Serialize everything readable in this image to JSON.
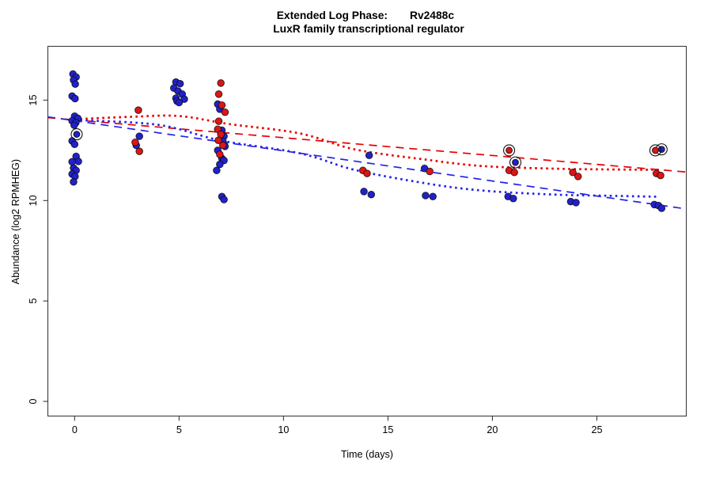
{
  "figure": {
    "title_line1_left": "Extended Log Phase:",
    "title_line1_right": "Rv2488c",
    "title_line2": "LuxR family transcriptional regulator"
  },
  "colors": {
    "point_blue": "#2121CC",
    "point_red": "#DC1616",
    "line_blue": "#2323E8",
    "line_red": "#E80000",
    "axis": "#3c3c3c",
    "marker_outline": "#111111"
  },
  "chart_data": {
    "type": "scatter",
    "title": "Extended Log Phase:  Rv2488c",
    "subtitle": "LuxR family transcriptional regulator",
    "xlabel": "Time  (days)",
    "ylabel": "Abundance  (log2 RPMHEG)",
    "xlim": [
      -1.3,
      29.3
    ],
    "ylim": [
      -0.75,
      17.7
    ],
    "x_ticks": [
      0,
      5,
      10,
      15,
      20,
      25
    ],
    "y_ticks": [
      0,
      5,
      10,
      15
    ],
    "grid": false,
    "legend": "none",
    "series": [
      {
        "name": "condition-blue",
        "color": "#2121CC",
        "marker": "circle",
        "points": [
          [
            -0.08,
            16.3
          ],
          [
            0.07,
            16.15
          ],
          [
            -0.05,
            16.0
          ],
          [
            0.03,
            15.8
          ],
          [
            -0.12,
            15.2
          ],
          [
            0.02,
            15.08
          ],
          [
            0.0,
            14.2
          ],
          [
            0.15,
            14.1
          ],
          [
            -0.12,
            13.97
          ],
          [
            0.06,
            13.88
          ],
          [
            -0.02,
            13.75
          ],
          [
            -0.12,
            12.97
          ],
          [
            0.0,
            12.8
          ],
          [
            0.07,
            12.2
          ],
          [
            0.18,
            11.95
          ],
          [
            -0.12,
            11.93
          ],
          [
            -0.05,
            11.62
          ],
          [
            0.07,
            11.5
          ],
          [
            -0.12,
            11.32
          ],
          [
            0.02,
            11.2
          ],
          [
            -0.05,
            10.93
          ],
          [
            3.1,
            13.2
          ],
          [
            2.95,
            12.75
          ],
          [
            4.85,
            15.9
          ],
          [
            5.05,
            15.82
          ],
          [
            4.75,
            15.6
          ],
          [
            4.95,
            15.45
          ],
          [
            5.15,
            15.3
          ],
          [
            4.85,
            15.1
          ],
          [
            5.25,
            15.05
          ],
          [
            4.9,
            14.95
          ],
          [
            5.0,
            14.88
          ],
          [
            6.85,
            14.8
          ],
          [
            6.95,
            14.55
          ],
          [
            7.05,
            13.5
          ],
          [
            7.15,
            13.2
          ],
          [
            7.1,
            12.95
          ],
          [
            7.2,
            12.7
          ],
          [
            6.85,
            12.5
          ],
          [
            7.05,
            12.1
          ],
          [
            7.15,
            12.0
          ],
          [
            6.95,
            11.8
          ],
          [
            6.8,
            11.5
          ],
          [
            7.05,
            10.2
          ],
          [
            7.15,
            10.05
          ],
          [
            14.1,
            12.25
          ],
          [
            13.85,
            10.45
          ],
          [
            14.2,
            10.3
          ],
          [
            16.75,
            11.6
          ],
          [
            16.8,
            10.25
          ],
          [
            17.15,
            10.2
          ],
          [
            20.75,
            10.2
          ],
          [
            21.0,
            10.1
          ],
          [
            23.75,
            9.95
          ],
          [
            24.0,
            9.9
          ],
          [
            27.75,
            9.8
          ],
          [
            27.95,
            9.75
          ],
          [
            28.1,
            9.62
          ]
        ]
      },
      {
        "name": "condition-red",
        "color": "#DC1616",
        "marker": "circle",
        "points": [
          [
            3.05,
            14.5
          ],
          [
            2.9,
            12.9
          ],
          [
            3.1,
            12.45
          ],
          [
            7.0,
            15.85
          ],
          [
            6.9,
            15.3
          ],
          [
            7.05,
            14.75
          ],
          [
            7.2,
            14.4
          ],
          [
            6.9,
            13.95
          ],
          [
            6.85,
            13.55
          ],
          [
            7.0,
            13.3
          ],
          [
            6.88,
            13.0
          ],
          [
            7.1,
            12.75
          ],
          [
            6.95,
            12.3
          ],
          [
            13.8,
            11.5
          ],
          [
            14.0,
            11.35
          ],
          [
            17.0,
            11.45
          ],
          [
            20.8,
            11.5
          ],
          [
            21.05,
            11.4
          ],
          [
            23.85,
            11.4
          ],
          [
            24.1,
            11.2
          ],
          [
            27.85,
            11.35
          ],
          [
            28.05,
            11.25
          ]
        ]
      },
      {
        "name": "median-marker-blue",
        "color": "#2121CC",
        "marker": "circled",
        "points": [
          [
            0.1,
            13.3
          ],
          [
            21.1,
            11.9
          ],
          [
            28.1,
            12.55
          ]
        ]
      },
      {
        "name": "median-marker-red",
        "color": "#DC1616",
        "marker": "circled",
        "points": [
          [
            20.8,
            12.5
          ],
          [
            27.8,
            12.5
          ]
        ]
      }
    ],
    "lines": [
      {
        "name": "red-dashed-trend",
        "color": "#E80000",
        "style": "dashed",
        "points": [
          [
            -1.3,
            14.13
          ],
          [
            29.3,
            11.42
          ]
        ]
      },
      {
        "name": "blue-dashed-trend",
        "color": "#2323E8",
        "style": "dashed",
        "points": [
          [
            -1.3,
            14.17
          ],
          [
            29.3,
            9.58
          ]
        ]
      },
      {
        "name": "red-dotted-trend",
        "color": "#E80000",
        "style": "dotted",
        "points": [
          [
            0,
            14.05
          ],
          [
            2.7,
            14.17
          ],
          [
            5,
            14.21
          ],
          [
            7.4,
            13.81
          ],
          [
            10.8,
            13.34
          ],
          [
            13.4,
            12.55
          ],
          [
            16.8,
            12.04
          ],
          [
            19.5,
            11.72
          ],
          [
            22.9,
            11.59
          ],
          [
            25.5,
            11.55
          ],
          [
            28,
            11.53
          ]
        ]
      },
      {
        "name": "blue-dotted-trend",
        "color": "#2323E8",
        "style": "dotted",
        "points": [
          [
            0,
            14.01
          ],
          [
            4,
            13.77
          ],
          [
            7,
            12.99
          ],
          [
            10.8,
            12.35
          ],
          [
            13.4,
            11.53
          ],
          [
            16.8,
            10.86
          ],
          [
            19.5,
            10.5
          ],
          [
            22.9,
            10.3
          ],
          [
            25.5,
            10.24
          ],
          [
            28,
            10.19
          ]
        ]
      }
    ]
  }
}
